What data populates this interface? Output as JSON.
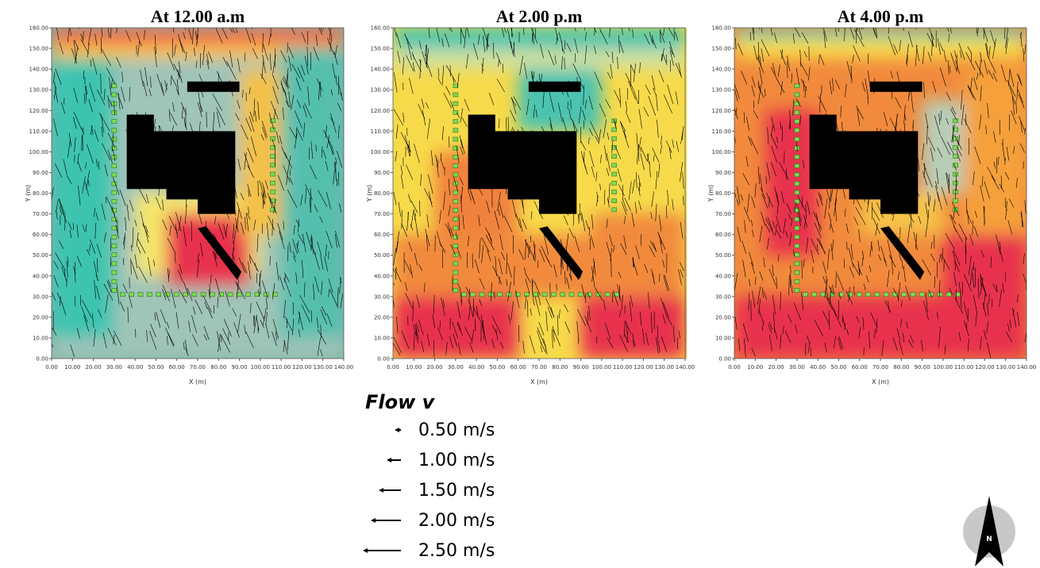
{
  "panels": [
    {
      "title": "At 12.00 a.m",
      "x_label": "X (m)",
      "y_label": "Y (m)"
    },
    {
      "title": "At 2.00 p.m",
      "x_label": "X (m)",
      "y_label": "Y (m)"
    },
    {
      "title": "At 4.00 p.m",
      "x_label": "X (m)",
      "y_label": "Y (m)"
    }
  ],
  "xticks": [
    "0.00",
    "10.00",
    "20.00",
    "30.00",
    "40.00",
    "50.00",
    "60.00",
    "70.00",
    "80.00",
    "90.00",
    "100.00",
    "110.00",
    "120.00",
    "130.00",
    "140.00"
  ],
  "yticks": [
    "0.00",
    "10.00",
    "20.00",
    "30.00",
    "40.00",
    "50.00",
    "60.00",
    "70.00",
    "80.00",
    "90.00",
    "100.00",
    "110.00",
    "120.00",
    "130.00",
    "140.00",
    "150.00",
    "160.00"
  ],
  "legend": {
    "title": "Flow v",
    "entries": [
      "0.50 m/s",
      "1.00 m/s",
      "1.50 m/s",
      "2.00 m/s",
      "2.50 m/s"
    ]
  },
  "north": "N"
}
